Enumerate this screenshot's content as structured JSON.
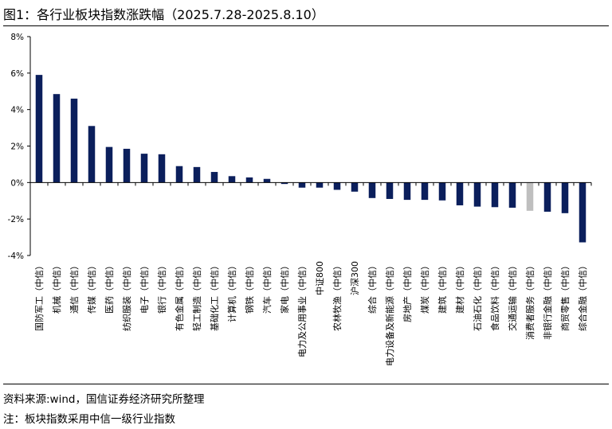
{
  "figure": {
    "title": "图1：各行业板块指数涨跌幅（2025.7.28-2025.8.10）",
    "source": "资料来源:wind，国信证券经济研究所整理",
    "note": "注：板块指数采用中信一级行业指数"
  },
  "colors": {
    "bar": "#0b1f5c",
    "highlight": "#bfbfbf",
    "axis": "#000000"
  },
  "chart_data": {
    "type": "bar",
    "title": "各行业板块指数涨跌幅（2025.7.28-2025.8.10）",
    "xlabel": "",
    "ylabel": "",
    "ylim": [
      -4,
      8
    ],
    "yticks": [
      -4,
      -2,
      0,
      2,
      4,
      6,
      8
    ],
    "ytick_labels": [
      "-4%",
      "-2%",
      "0%",
      "2%",
      "4%",
      "6%",
      "8%"
    ],
    "grid": false,
    "legend": "none",
    "highlight_category": "消费者服务（中信）",
    "categories": [
      "国防军工（中信）",
      "机械（中信）",
      "通信（中信）",
      "传媒（中信）",
      "医药（中信）",
      "纺织服装（中信）",
      "电子（中信）",
      "银行（中信）",
      "有色金属（中信）",
      "轻工制造（中信）",
      "基础化工（中信）",
      "计算机（中信）",
      "钢铁（中信）",
      "汽车（中信）",
      "家电（中信）",
      "电力及公用事业（中信）",
      "中证800",
      "农林牧渔（中信）",
      "沪深300",
      "综合（中信）",
      "电力设备及新能源（中信）",
      "房地产（中信）",
      "煤炭（中信）",
      "建筑（中信）",
      "建材（中信）",
      "石油石化（中信）",
      "食品饮料（中信）",
      "交通运输（中信）",
      "消费者服务（中信）",
      "非银行金融（中信）",
      "商贸零售（中信）",
      "综合金融（中信）"
    ],
    "values": [
      5.9,
      4.85,
      4.6,
      3.1,
      1.95,
      1.85,
      1.58,
      1.55,
      0.9,
      0.85,
      0.58,
      0.35,
      0.28,
      0.2,
      -0.08,
      -0.28,
      -0.28,
      -0.4,
      -0.5,
      -0.85,
      -0.9,
      -0.95,
      -0.95,
      -0.98,
      -1.25,
      -1.32,
      -1.35,
      -1.38,
      -1.55,
      -1.6,
      -1.68,
      -3.28
    ]
  }
}
